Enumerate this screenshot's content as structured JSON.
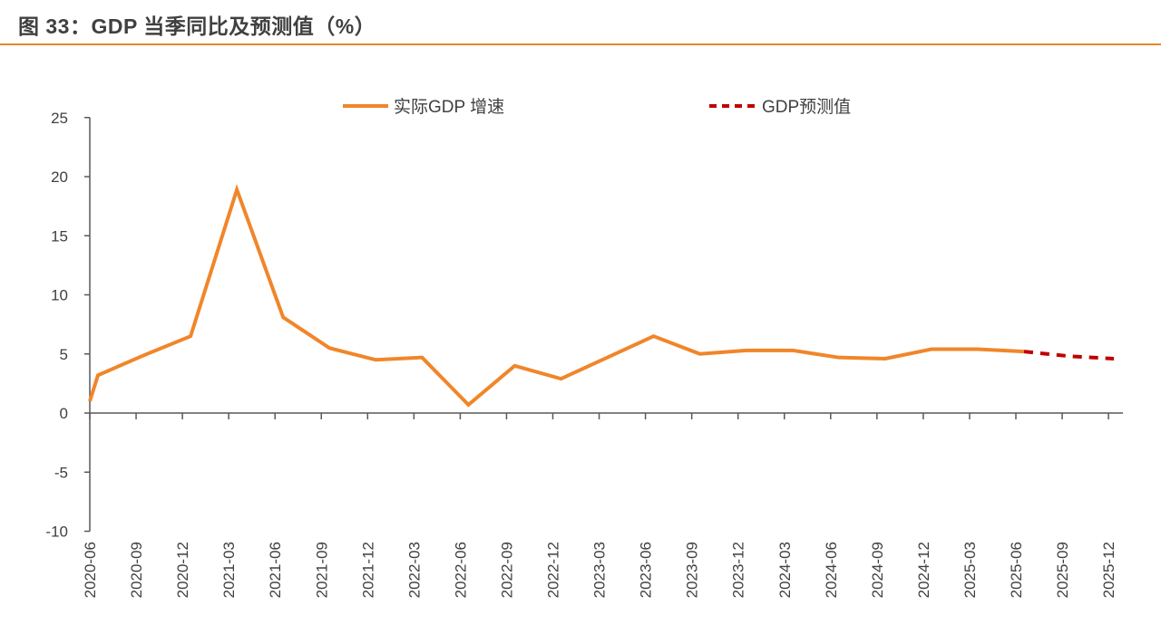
{
  "header": {
    "title": "图 33：GDP 当季同比及预测值（%）",
    "rule_color": "#e8862a"
  },
  "chart_data": {
    "type": "line",
    "title": "图 33：GDP 当季同比及预测值（%）",
    "xlabel": "",
    "ylabel": "",
    "ylim": [
      -10,
      25
    ],
    "yticks": [
      25,
      20,
      15,
      10,
      5,
      0,
      -5,
      -10
    ],
    "grid": false,
    "legend_position": "top",
    "categories": [
      "2020-06",
      "2020-09",
      "2020-12",
      "2021-03",
      "2021-06",
      "2021-09",
      "2021-12",
      "2022-03",
      "2022-06",
      "2022-09",
      "2022-12",
      "2023-03",
      "2023-06",
      "2023-09",
      "2023-12",
      "2024-03",
      "2024-06",
      "2024-09",
      "2024-12",
      "2025-03",
      "2025-06",
      "2025-09",
      "2025-12"
    ],
    "series": [
      {
        "name": "实际GDP 增速",
        "color": "#f0862a",
        "style": "solid",
        "values": [
          3.2,
          4.9,
          6.5,
          18.9,
          8.1,
          5.5,
          4.5,
          4.7,
          0.7,
          4.0,
          2.9,
          4.7,
          6.5,
          5.0,
          5.3,
          5.3,
          4.7,
          4.6,
          5.4,
          5.4,
          5.2,
          null,
          null
        ]
      },
      {
        "name": "GDP预测值",
        "color": "#c00000",
        "style": "dashed",
        "values": [
          null,
          null,
          null,
          null,
          null,
          null,
          null,
          null,
          null,
          null,
          null,
          null,
          null,
          null,
          null,
          null,
          null,
          null,
          null,
          null,
          5.2,
          4.8,
          4.6
        ]
      }
    ]
  },
  "legend": {
    "actual_label": "实际GDP 增速",
    "forecast_label": "GDP预测值"
  }
}
